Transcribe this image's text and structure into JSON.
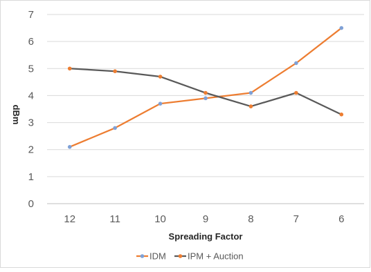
{
  "chart_data": {
    "type": "line",
    "title": "",
    "xlabel": "Spreading Factor",
    "ylabel": "dBm",
    "categories": [
      "12",
      "11",
      "10",
      "9",
      "8",
      "7",
      "6"
    ],
    "yticks": [
      "0",
      "1",
      "2",
      "3",
      "4",
      "5",
      "6",
      "7"
    ],
    "ylim": [
      0,
      7
    ],
    "grid": "horizontal",
    "legend_position": "bottom",
    "series": [
      {
        "name": "IDM",
        "line_color": "#ED7D31",
        "marker_color": "#7FA1D6",
        "values": [
          2.1,
          2.8,
          3.7,
          3.9,
          4.1,
          5.2,
          6.5
        ]
      },
      {
        "name": "IPM + Auction",
        "line_color": "#595959",
        "marker_color": "#ED7D31",
        "values": [
          5.0,
          4.9,
          4.7,
          4.1,
          3.6,
          4.1,
          3.3
        ]
      }
    ]
  }
}
